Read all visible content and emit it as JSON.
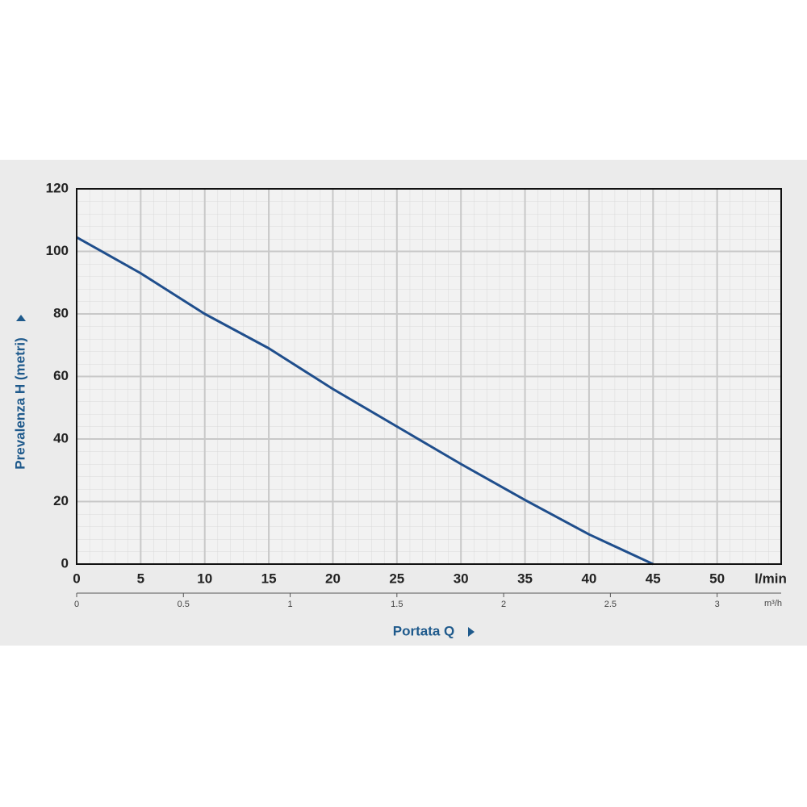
{
  "chart_data": {
    "type": "line",
    "x_label": "Portata Q",
    "y_label": "Prevalenza H (metri)",
    "x_unit": "l/min",
    "x2_unit": "m³/h",
    "x": [
      0,
      5,
      10,
      15,
      20,
      25,
      30,
      35,
      40,
      45
    ],
    "series": [
      {
        "color": "#1f4e8c",
        "values": [
          104.5,
          93,
          80,
          69,
          56,
          44,
          32,
          20.5,
          9.5,
          0
        ]
      }
    ],
    "xlim": [
      0,
      55
    ],
    "ylim": [
      0,
      120
    ],
    "xticks": [
      0,
      5,
      10,
      15,
      20,
      25,
      30,
      35,
      40,
      45,
      50
    ],
    "yticks": [
      0,
      20,
      40,
      60,
      80,
      100,
      120
    ],
    "x2lim": [
      0,
      3.3
    ],
    "x2ticks": [
      0,
      0.5,
      1,
      1.5,
      2,
      2.5,
      3
    ],
    "grid": true
  }
}
